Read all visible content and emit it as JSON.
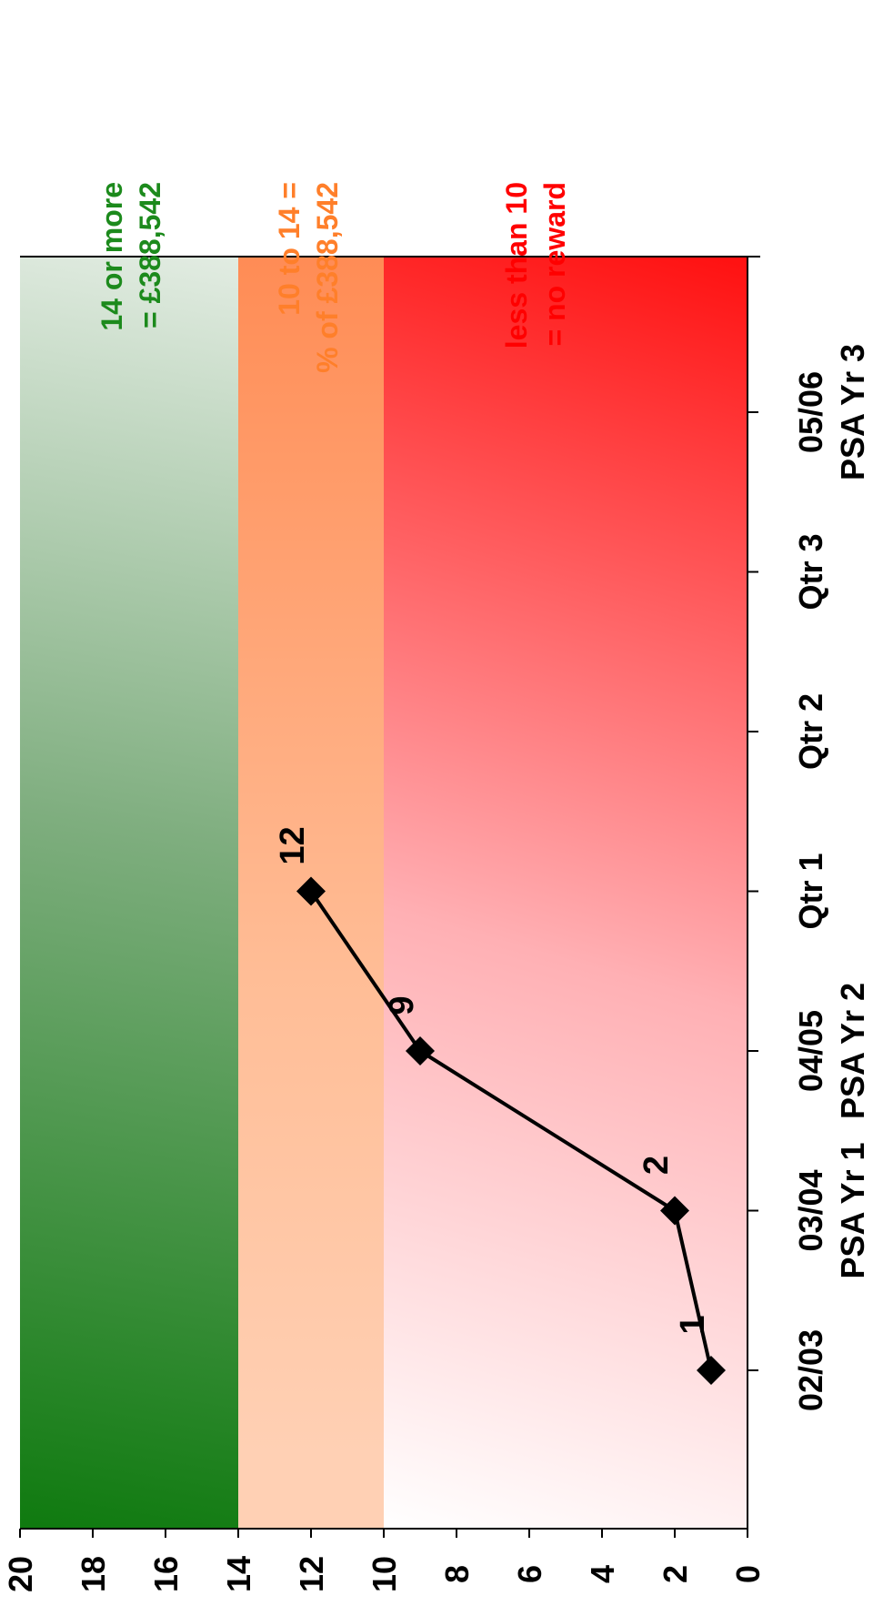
{
  "chart_data": {
    "type": "line",
    "orientation": "rotated-90-clockwise",
    "categories": [
      "02/03",
      "03/04",
      "04/05",
      "Qtr 1",
      "Qtr 2",
      "Qtr 3",
      "05/06"
    ],
    "category_sublabels": [
      "",
      "PSA Yr 1",
      "PSA Yr 2",
      "",
      "",
      "",
      "PSA Yr 3"
    ],
    "yticks": [
      0,
      2,
      4,
      6,
      8,
      10,
      12,
      14,
      16,
      18,
      20
    ],
    "ylim": [
      0,
      20
    ],
    "bands": [
      {
        "id": "green",
        "from": 14,
        "to": 20,
        "text_line1": "14 or more",
        "text_line2": "= £388,542",
        "color": "#1c8a1c"
      },
      {
        "id": "orange",
        "from": 10,
        "to": 14,
        "text_line1": "10 to 14 =",
        "text_line2": "% of £388,542",
        "color": "#ff7f2a"
      },
      {
        "id": "red",
        "from": 0,
        "to": 10,
        "text_line1": "less than 10",
        "text_line2": "= no reward",
        "color": "#ff0000"
      }
    ],
    "series": [
      {
        "points": [
          {
            "x": "02/03",
            "y": 1,
            "label": "1"
          },
          {
            "x": "03/04",
            "y": 2,
            "label": "2"
          },
          {
            "x": "04/05",
            "y": 9,
            "label": "9"
          },
          {
            "x": "Qtr 1",
            "y": 12,
            "label": "12"
          }
        ],
        "solid_segments": 3,
        "color": "#000000"
      }
    ],
    "grid": false,
    "legend": "none"
  }
}
